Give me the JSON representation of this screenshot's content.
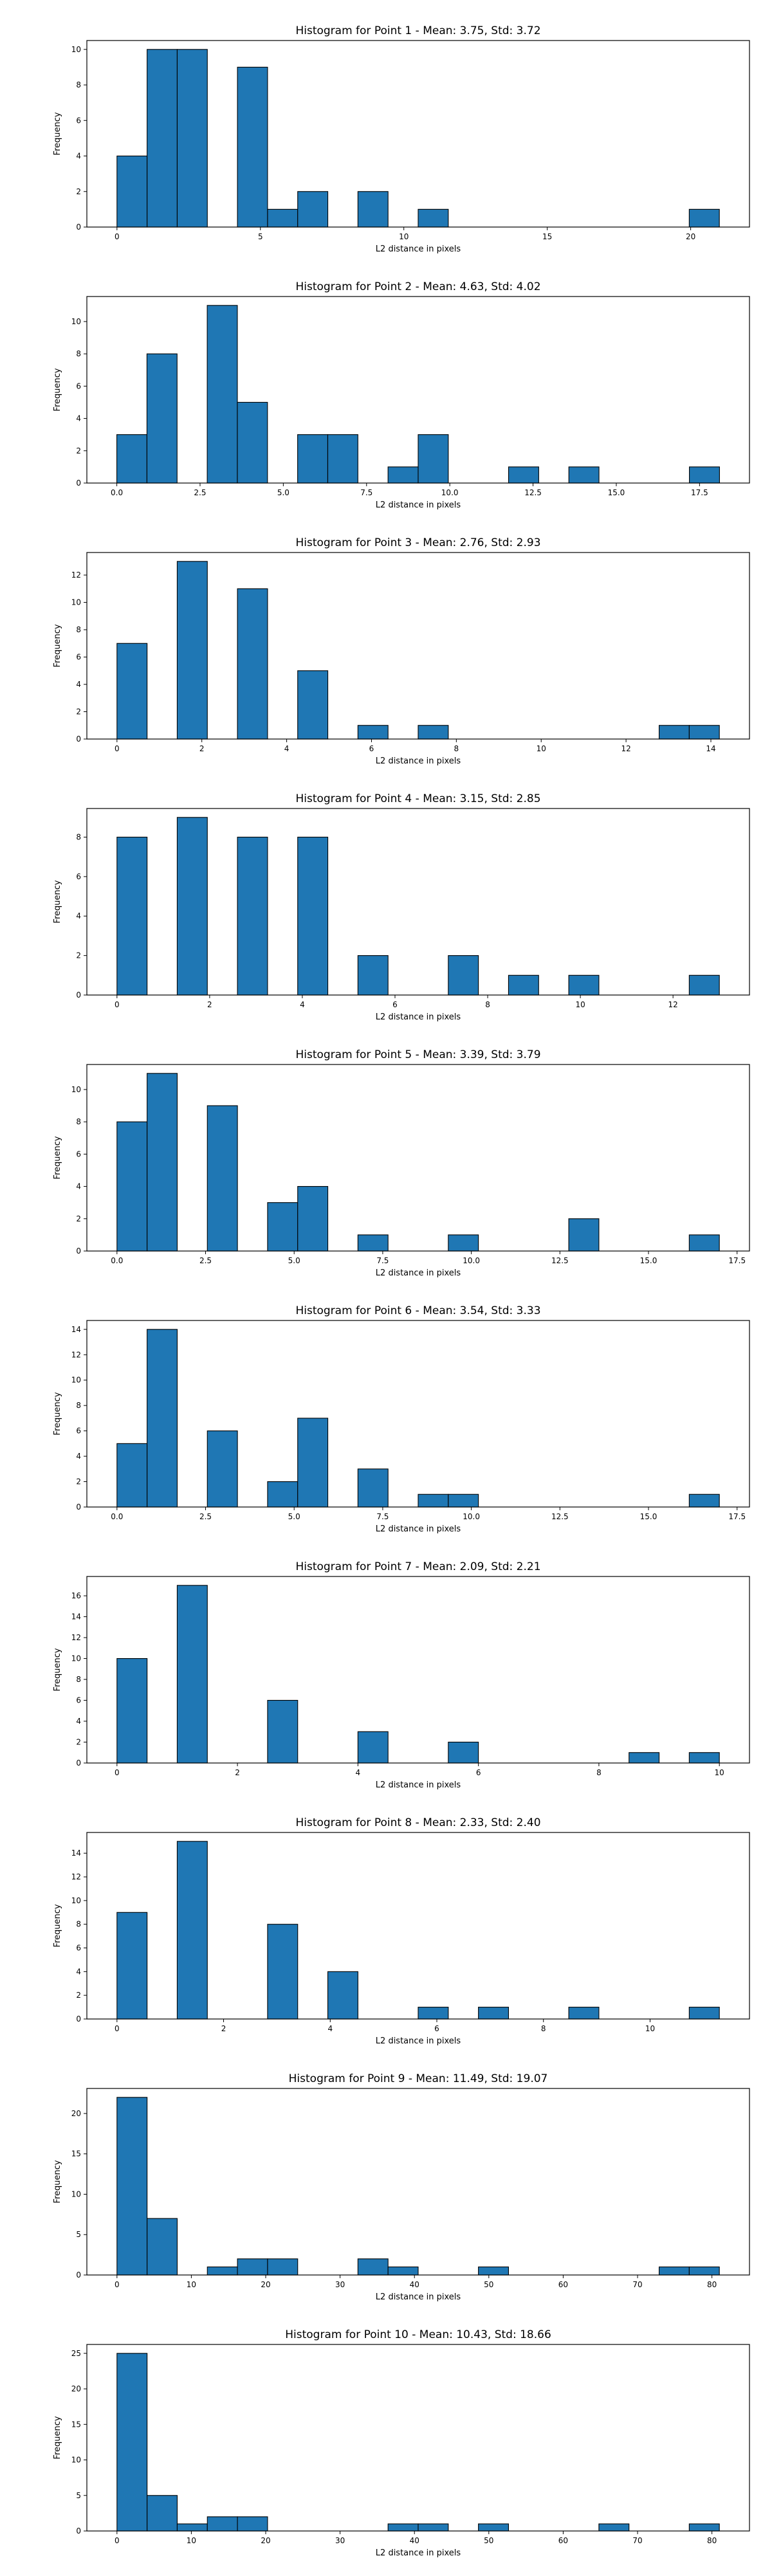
{
  "style": {
    "bar_color": "#1f77b4",
    "edge_color": "#000000",
    "background": "#ffffff"
  },
  "chart_data": [
    {
      "type": "bar",
      "title": "Histogram for Point 1 - Mean: 3.75, Std: 3.72",
      "xlabel": "L2 distance in pixels",
      "ylabel": "Frequency",
      "xlim": [
        -1.05,
        22.05
      ],
      "ylim": [
        0,
        10.5
      ],
      "xticks": [
        {
          "v": 0,
          "label": "0"
        },
        {
          "v": 5,
          "label": "5"
        },
        {
          "v": 10,
          "label": "10"
        },
        {
          "v": 15,
          "label": "15"
        },
        {
          "v": 20,
          "label": "20"
        }
      ],
      "yticks": [
        {
          "v": 0,
          "label": "0"
        },
        {
          "v": 2,
          "label": "2"
        },
        {
          "v": 4,
          "label": "4"
        },
        {
          "v": 6,
          "label": "6"
        },
        {
          "v": 8,
          "label": "8"
        },
        {
          "v": 10,
          "label": "10"
        }
      ],
      "bins": [
        0,
        1.05,
        2.1,
        3.15,
        4.2,
        5.25,
        6.3,
        7.35,
        8.4,
        9.45,
        10.5,
        11.55,
        12.6,
        13.65,
        14.7,
        15.75,
        16.8,
        17.85,
        18.9,
        19.95,
        21.0
      ],
      "counts": [
        4,
        10,
        10,
        0,
        9,
        1,
        2,
        0,
        2,
        0,
        1,
        0,
        0,
        0,
        0,
        0,
        0,
        0,
        0,
        1
      ]
    },
    {
      "type": "bar",
      "title": "Histogram for Point 2 - Mean: 4.63, Std: 4.02",
      "xlabel": "L2 distance in pixels",
      "ylabel": "Frequency",
      "xlim": [
        -0.9,
        19.0
      ],
      "ylim": [
        0,
        11.55
      ],
      "xticks": [
        {
          "v": 0,
          "label": "0.0"
        },
        {
          "v": 2.5,
          "label": "2.5"
        },
        {
          "v": 5,
          "label": "5.0"
        },
        {
          "v": 7.5,
          "label": "7.5"
        },
        {
          "v": 10,
          "label": "10.0"
        },
        {
          "v": 12.5,
          "label": "12.5"
        },
        {
          "v": 15,
          "label": "15.0"
        },
        {
          "v": 17.5,
          "label": "17.5"
        }
      ],
      "yticks": [
        {
          "v": 0,
          "label": "0"
        },
        {
          "v": 2,
          "label": "2"
        },
        {
          "v": 4,
          "label": "4"
        },
        {
          "v": 6,
          "label": "6"
        },
        {
          "v": 8,
          "label": "8"
        },
        {
          "v": 10,
          "label": "10"
        }
      ],
      "bins": [
        0,
        0.905,
        1.81,
        2.715,
        3.62,
        4.525,
        5.43,
        6.335,
        7.24,
        8.145,
        9.05,
        9.955,
        10.86,
        11.765,
        12.67,
        13.575,
        14.48,
        15.385,
        16.29,
        17.195,
        18.1
      ],
      "counts": [
        3,
        8,
        0,
        11,
        5,
        0,
        3,
        3,
        0,
        1,
        3,
        0,
        0,
        1,
        0,
        1,
        0,
        0,
        0,
        1
      ]
    },
    {
      "type": "bar",
      "title": "Histogram for Point 3 - Mean: 2.76, Std: 2.93",
      "xlabel": "L2 distance in pixels",
      "ylabel": "Frequency",
      "xlim": [
        -0.71,
        14.91
      ],
      "ylim": [
        0,
        13.65
      ],
      "xticks": [
        {
          "v": 0,
          "label": "0"
        },
        {
          "v": 2,
          "label": "2"
        },
        {
          "v": 4,
          "label": "4"
        },
        {
          "v": 6,
          "label": "6"
        },
        {
          "v": 8,
          "label": "8"
        },
        {
          "v": 10,
          "label": "10"
        },
        {
          "v": 12,
          "label": "12"
        },
        {
          "v": 14,
          "label": "14"
        }
      ],
      "yticks": [
        {
          "v": 0,
          "label": "0"
        },
        {
          "v": 2,
          "label": "2"
        },
        {
          "v": 4,
          "label": "4"
        },
        {
          "v": 6,
          "label": "6"
        },
        {
          "v": 8,
          "label": "8"
        },
        {
          "v": 10,
          "label": "10"
        },
        {
          "v": 12,
          "label": "12"
        }
      ],
      "bins": [
        0,
        0.71,
        1.42,
        2.13,
        2.84,
        3.55,
        4.26,
        4.97,
        5.68,
        6.39,
        7.1,
        7.81,
        8.52,
        9.23,
        9.94,
        10.65,
        11.36,
        12.07,
        12.78,
        13.49,
        14.2
      ],
      "counts": [
        7,
        0,
        13,
        0,
        11,
        0,
        5,
        0,
        1,
        0,
        1,
        0,
        0,
        0,
        0,
        0,
        0,
        0,
        1,
        1
      ]
    },
    {
      "type": "bar",
      "title": "Histogram for Point 4 - Mean: 3.15, Std: 2.85",
      "xlabel": "L2 distance in pixels",
      "ylabel": "Frequency",
      "xlim": [
        -0.65,
        13.65
      ],
      "ylim": [
        0,
        9.45
      ],
      "xticks": [
        {
          "v": 0,
          "label": "0"
        },
        {
          "v": 2,
          "label": "2"
        },
        {
          "v": 4,
          "label": "4"
        },
        {
          "v": 6,
          "label": "6"
        },
        {
          "v": 8,
          "label": "8"
        },
        {
          "v": 10,
          "label": "10"
        },
        {
          "v": 12,
          "label": "12"
        }
      ],
      "yticks": [
        {
          "v": 0,
          "label": "0"
        },
        {
          "v": 2,
          "label": "2"
        },
        {
          "v": 4,
          "label": "4"
        },
        {
          "v": 6,
          "label": "6"
        },
        {
          "v": 8,
          "label": "8"
        }
      ],
      "bins": [
        0,
        0.65,
        1.3,
        1.95,
        2.6,
        3.25,
        3.9,
        4.55,
        5.2,
        5.85,
        6.5,
        7.15,
        7.8,
        8.45,
        9.1,
        9.75,
        10.4,
        11.05,
        11.7,
        12.35,
        13.0
      ],
      "counts": [
        8,
        0,
        9,
        0,
        8,
        0,
        8,
        0,
        2,
        0,
        0,
        2,
        0,
        1,
        0,
        1,
        0,
        0,
        0,
        1
      ]
    },
    {
      "type": "bar",
      "title": "Histogram for Point 5 - Mean: 3.39, Std: 3.79",
      "xlabel": "L2 distance in pixels",
      "ylabel": "Frequency",
      "xlim": [
        -0.85,
        17.85
      ],
      "ylim": [
        0,
        11.55
      ],
      "xticks": [
        {
          "v": 0,
          "label": "0.0"
        },
        {
          "v": 2.5,
          "label": "2.5"
        },
        {
          "v": 5,
          "label": "5.0"
        },
        {
          "v": 7.5,
          "label": "7.5"
        },
        {
          "v": 10,
          "label": "10.0"
        },
        {
          "v": 12.5,
          "label": "12.5"
        },
        {
          "v": 15,
          "label": "15.0"
        },
        {
          "v": 17.5,
          "label": "17.5"
        }
      ],
      "yticks": [
        {
          "v": 0,
          "label": "0"
        },
        {
          "v": 2,
          "label": "2"
        },
        {
          "v": 4,
          "label": "4"
        },
        {
          "v": 6,
          "label": "6"
        },
        {
          "v": 8,
          "label": "8"
        },
        {
          "v": 10,
          "label": "10"
        }
      ],
      "bins": [
        0,
        0.85,
        1.7,
        2.55,
        3.4,
        4.25,
        5.1,
        5.95,
        6.8,
        7.65,
        8.5,
        9.35,
        10.2,
        11.05,
        11.9,
        12.75,
        13.6,
        14.45,
        15.3,
        16.15,
        17.0
      ],
      "counts": [
        8,
        11,
        0,
        9,
        0,
        3,
        4,
        0,
        1,
        0,
        0,
        1,
        0,
        0,
        0,
        2,
        0,
        0,
        0,
        1
      ]
    },
    {
      "type": "bar",
      "title": "Histogram for Point 6 - Mean: 3.54, Std: 3.33",
      "xlabel": "L2 distance in pixels",
      "ylabel": "Frequency",
      "xlim": [
        -0.85,
        17.85
      ],
      "ylim": [
        0,
        14.7
      ],
      "xticks": [
        {
          "v": 0,
          "label": "0.0"
        },
        {
          "v": 2.5,
          "label": "2.5"
        },
        {
          "v": 5,
          "label": "5.0"
        },
        {
          "v": 7.5,
          "label": "7.5"
        },
        {
          "v": 10,
          "label": "10.0"
        },
        {
          "v": 12.5,
          "label": "12.5"
        },
        {
          "v": 15,
          "label": "15.0"
        },
        {
          "v": 17.5,
          "label": "17.5"
        }
      ],
      "yticks": [
        {
          "v": 0,
          "label": "0"
        },
        {
          "v": 2,
          "label": "2"
        },
        {
          "v": 4,
          "label": "4"
        },
        {
          "v": 6,
          "label": "6"
        },
        {
          "v": 8,
          "label": "8"
        },
        {
          "v": 10,
          "label": "10"
        },
        {
          "v": 12,
          "label": "12"
        },
        {
          "v": 14,
          "label": "14"
        }
      ],
      "bins": [
        0,
        0.85,
        1.7,
        2.55,
        3.4,
        4.25,
        5.1,
        5.95,
        6.8,
        7.65,
        8.5,
        9.35,
        10.2,
        11.05,
        11.9,
        12.75,
        13.6,
        14.45,
        15.3,
        16.15,
        17.0
      ],
      "counts": [
        5,
        14,
        0,
        6,
        0,
        2,
        7,
        0,
        3,
        0,
        1,
        1,
        0,
        0,
        0,
        0,
        0,
        0,
        0,
        1
      ]
    },
    {
      "type": "bar",
      "title": "Histogram for Point 7 - Mean: 2.09, Std: 2.21",
      "xlabel": "L2 distance in pixels",
      "ylabel": "Frequency",
      "xlim": [
        -0.5,
        10.5
      ],
      "ylim": [
        0,
        17.85
      ],
      "xticks": [
        {
          "v": 0,
          "label": "0"
        },
        {
          "v": 2,
          "label": "2"
        },
        {
          "v": 4,
          "label": "4"
        },
        {
          "v": 6,
          "label": "6"
        },
        {
          "v": 8,
          "label": "8"
        },
        {
          "v": 10,
          "label": "10"
        }
      ],
      "yticks": [
        {
          "v": 0,
          "label": "0"
        },
        {
          "v": 2,
          "label": "2"
        },
        {
          "v": 4,
          "label": "4"
        },
        {
          "v": 6,
          "label": "6"
        },
        {
          "v": 8,
          "label": "8"
        },
        {
          "v": 10,
          "label": "10"
        },
        {
          "v": 12,
          "label": "12"
        },
        {
          "v": 14,
          "label": "14"
        },
        {
          "v": 16,
          "label": "16"
        }
      ],
      "bins": [
        0,
        0.5,
        1.0,
        1.5,
        2.0,
        2.5,
        3.0,
        3.5,
        4.0,
        4.5,
        5.0,
        5.5,
        6.0,
        6.5,
        7.0,
        7.5,
        8.0,
        8.5,
        9.0,
        9.5,
        10.0
      ],
      "counts": [
        10,
        0,
        17,
        0,
        0,
        6,
        0,
        0,
        3,
        0,
        0,
        2,
        0,
        0,
        0,
        0,
        0,
        1,
        0,
        1
      ]
    },
    {
      "type": "bar",
      "title": "Histogram for Point 8 - Mean: 2.33, Std: 2.40",
      "xlabel": "L2 distance in pixels",
      "ylabel": "Frequency",
      "xlim": [
        -0.565,
        11.865
      ],
      "ylim": [
        0,
        15.75
      ],
      "xticks": [
        {
          "v": 0,
          "label": "0"
        },
        {
          "v": 2,
          "label": "2"
        },
        {
          "v": 4,
          "label": "4"
        },
        {
          "v": 6,
          "label": "6"
        },
        {
          "v": 8,
          "label": "8"
        },
        {
          "v": 10,
          "label": "10"
        }
      ],
      "yticks": [
        {
          "v": 0,
          "label": "0"
        },
        {
          "v": 2,
          "label": "2"
        },
        {
          "v": 4,
          "label": "4"
        },
        {
          "v": 6,
          "label": "6"
        },
        {
          "v": 8,
          "label": "8"
        },
        {
          "v": 10,
          "label": "10"
        },
        {
          "v": 12,
          "label": "12"
        },
        {
          "v": 14,
          "label": "14"
        }
      ],
      "bins": [
        0,
        0.565,
        1.13,
        1.695,
        2.26,
        2.825,
        3.39,
        3.955,
        4.52,
        5.085,
        5.65,
        6.215,
        6.78,
        7.345,
        7.91,
        8.475,
        9.04,
        9.605,
        10.17,
        10.735,
        11.3
      ],
      "counts": [
        9,
        0,
        15,
        0,
        0,
        8,
        0,
        4,
        0,
        0,
        1,
        0,
        1,
        0,
        0,
        1,
        0,
        0,
        0,
        1
      ]
    },
    {
      "type": "bar",
      "title": "Histogram for Point 9 - Mean: 11.49, Std: 19.07",
      "xlabel": "L2 distance in pixels",
      "ylabel": "Frequency",
      "xlim": [
        -4.05,
        85.05
      ],
      "ylim": [
        0,
        23.1
      ],
      "xticks": [
        {
          "v": 0,
          "label": "0"
        },
        {
          "v": 10,
          "label": "10"
        },
        {
          "v": 20,
          "label": "20"
        },
        {
          "v": 30,
          "label": "30"
        },
        {
          "v": 40,
          "label": "40"
        },
        {
          "v": 50,
          "label": "50"
        },
        {
          "v": 60,
          "label": "60"
        },
        {
          "v": 70,
          "label": "70"
        },
        {
          "v": 80,
          "label": "80"
        }
      ],
      "yticks": [
        {
          "v": 0,
          "label": "0"
        },
        {
          "v": 5,
          "label": "5"
        },
        {
          "v": 10,
          "label": "10"
        },
        {
          "v": 15,
          "label": "15"
        },
        {
          "v": 20,
          "label": "20"
        }
      ],
      "bins": [
        0,
        4.05,
        8.1,
        12.15,
        16.2,
        20.25,
        24.3,
        28.35,
        32.4,
        36.45,
        40.5,
        44.55,
        48.6,
        52.65,
        56.7,
        60.75,
        64.8,
        68.85,
        72.9,
        76.95,
        81.0
      ],
      "counts": [
        22,
        7,
        0,
        1,
        2,
        2,
        0,
        0,
        2,
        1,
        0,
        0,
        1,
        0,
        0,
        0,
        0,
        0,
        1,
        1
      ]
    },
    {
      "type": "bar",
      "title": "Histogram for Point 10 - Mean: 10.43, Std: 18.66",
      "xlabel": "L2 distance in pixels",
      "ylabel": "Frequency",
      "xlim": [
        -4.05,
        85.05
      ],
      "ylim": [
        0,
        26.25
      ],
      "xticks": [
        {
          "v": 0,
          "label": "0"
        },
        {
          "v": 10,
          "label": "10"
        },
        {
          "v": 20,
          "label": "20"
        },
        {
          "v": 30,
          "label": "30"
        },
        {
          "v": 40,
          "label": "40"
        },
        {
          "v": 50,
          "label": "50"
        },
        {
          "v": 60,
          "label": "60"
        },
        {
          "v": 70,
          "label": "70"
        },
        {
          "v": 80,
          "label": "80"
        }
      ],
      "yticks": [
        {
          "v": 0,
          "label": "0"
        },
        {
          "v": 5,
          "label": "5"
        },
        {
          "v": 10,
          "label": "10"
        },
        {
          "v": 15,
          "label": "15"
        },
        {
          "v": 20,
          "label": "20"
        },
        {
          "v": 25,
          "label": "25"
        }
      ],
      "bins": [
        0,
        4.05,
        8.1,
        12.15,
        16.2,
        20.25,
        24.3,
        28.35,
        32.4,
        36.45,
        40.5,
        44.55,
        48.6,
        52.65,
        56.7,
        60.75,
        64.8,
        68.85,
        72.9,
        76.95,
        81.0
      ],
      "counts": [
        25,
        5,
        1,
        2,
        2,
        0,
        0,
        0,
        0,
        1,
        1,
        0,
        1,
        0,
        0,
        0,
        1,
        0,
        0,
        1
      ]
    }
  ]
}
